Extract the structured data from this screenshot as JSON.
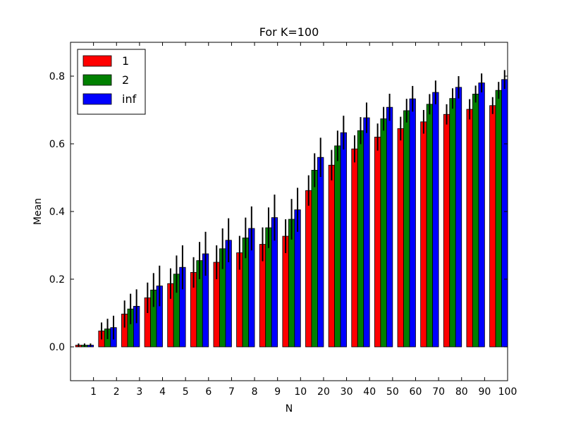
{
  "chart_data": {
    "type": "bar",
    "title": "For K=100",
    "xlabel": "N",
    "ylabel": "Mean",
    "ylim": [
      -0.1,
      0.9
    ],
    "yticks": [
      "0.0",
      "0.2",
      "0.4",
      "0.6",
      "0.8"
    ],
    "categories": [
      "1",
      "2",
      "3",
      "4",
      "5",
      "6",
      "7",
      "8",
      "9",
      "10",
      "20",
      "30",
      "40",
      "50",
      "60",
      "70",
      "80",
      "90",
      "100"
    ],
    "legend_position": "top-left",
    "grid": false,
    "error_bars": true,
    "series": [
      {
        "name": "1",
        "color": "#ff0000",
        "values": [
          0.005,
          0.047,
          0.097,
          0.145,
          0.187,
          0.22,
          0.25,
          0.278,
          0.303,
          0.327,
          0.462,
          0.537,
          0.585,
          0.62,
          0.645,
          0.665,
          0.687,
          0.702,
          0.713
        ],
        "errors": [
          0.005,
          0.025,
          0.04,
          0.045,
          0.045,
          0.045,
          0.05,
          0.05,
          0.05,
          0.05,
          0.045,
          0.045,
          0.04,
          0.04,
          0.035,
          0.035,
          0.03,
          0.03,
          0.025
        ]
      },
      {
        "name": "2",
        "color": "#008000",
        "values": [
          0.005,
          0.053,
          0.112,
          0.168,
          0.215,
          0.255,
          0.29,
          0.322,
          0.352,
          0.377,
          0.522,
          0.594,
          0.639,
          0.674,
          0.698,
          0.717,
          0.734,
          0.747,
          0.758
        ],
        "errors": [
          0.005,
          0.03,
          0.045,
          0.05,
          0.055,
          0.055,
          0.06,
          0.06,
          0.06,
          0.06,
          0.05,
          0.045,
          0.04,
          0.035,
          0.035,
          0.03,
          0.03,
          0.025,
          0.025
        ]
      },
      {
        "name": "inf",
        "color": "#0000ff",
        "values": [
          0.005,
          0.057,
          0.12,
          0.18,
          0.235,
          0.275,
          0.315,
          0.35,
          0.382,
          0.405,
          0.56,
          0.633,
          0.677,
          0.708,
          0.733,
          0.752,
          0.767,
          0.78,
          0.79
        ],
        "errors": [
          0.005,
          0.035,
          0.05,
          0.06,
          0.065,
          0.065,
          0.065,
          0.065,
          0.068,
          0.065,
          0.058,
          0.05,
          0.045,
          0.04,
          0.038,
          0.035,
          0.033,
          0.028,
          0.028
        ]
      }
    ]
  }
}
